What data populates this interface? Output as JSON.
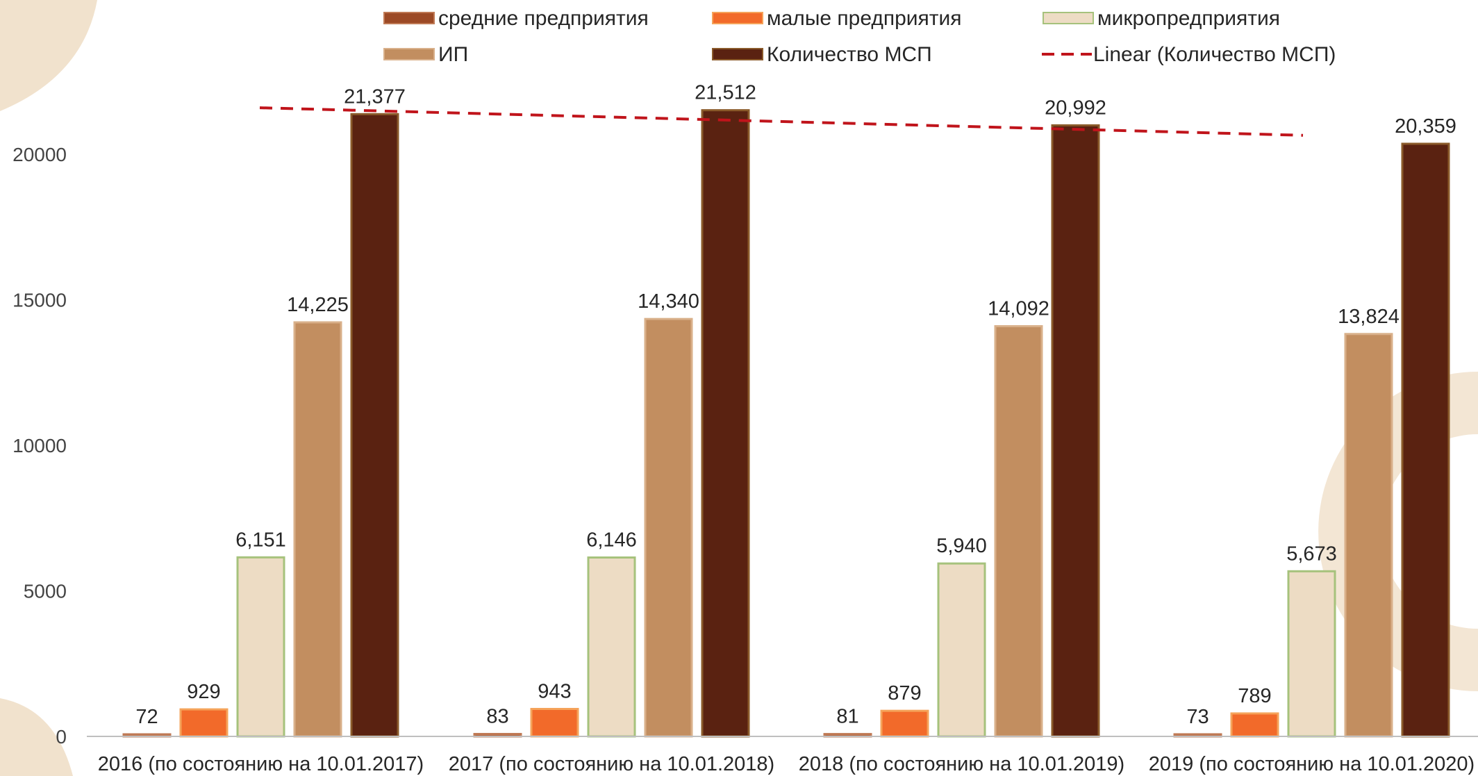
{
  "chart_data": {
    "type": "bar",
    "categories": [
      "2016 (по состоянию на 10.01.2017)",
      "2017 (по состоянию на 10.01.2018)",
      "2018 (по состоянию на 10.01.2019)",
      "2019 (по состоянию на 10.01.2020)"
    ],
    "series": [
      {
        "name": "средние предприятия",
        "values": [
          72,
          83,
          81,
          73
        ],
        "labels": [
          "72",
          "83",
          "81",
          "73"
        ],
        "color": "#9c4a26",
        "stroke": "#c07a55"
      },
      {
        "name": "малые предприятия",
        "values": [
          929,
          943,
          879,
          789
        ],
        "labels": [
          "929",
          "943",
          "879",
          "789"
        ],
        "color": "#f26a2a",
        "stroke": "#f5a35a"
      },
      {
        "name": "микропредприятия",
        "values": [
          6151,
          6146,
          5940,
          5673
        ],
        "labels": [
          "6,151",
          "6,146",
          "5,940",
          "5,673"
        ],
        "color": "#eddcc4",
        "stroke": "#a6c27c"
      },
      {
        "name": "ИП",
        "values": [
          14225,
          14340,
          14092,
          13824
        ],
        "labels": [
          "14,225",
          "14,340",
          "14,092",
          "13,824"
        ],
        "color": "#c28e60",
        "stroke": "#d9b08a"
      },
      {
        "name": "Количество МСП",
        "values": [
          21377,
          21512,
          20992,
          20359
        ],
        "labels": [
          "21,377",
          "21,512",
          "20,992",
          "20,359"
        ],
        "color": "#5a2211",
        "stroke": "#8a5a2a"
      }
    ],
    "trendline": {
      "name": "Linear (Количество МСП)",
      "series": "Количество МСП",
      "color": "#c0141b",
      "dashed": true
    },
    "yticks": [
      0,
      5000,
      10000,
      15000,
      20000
    ],
    "ylim": [
      0,
      23000
    ],
    "title": "",
    "xlabel": "",
    "ylabel": "",
    "grid": false,
    "legend_position": "top"
  }
}
